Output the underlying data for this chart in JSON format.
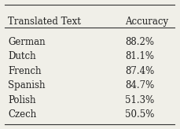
{
  "col_headers": [
    "Translated Text",
    "Accuracy"
  ],
  "rows": [
    [
      "German",
      "88.2%"
    ],
    [
      "Dutch",
      "81.1%"
    ],
    [
      "French",
      "87.4%"
    ],
    [
      "Spanish",
      "84.7%"
    ],
    [
      "Polish",
      "51.3%"
    ],
    [
      "Czech",
      "50.5%"
    ]
  ],
  "background_color": "#f0efe8",
  "header_line_color": "#333333",
  "text_color": "#222222",
  "font_size": 8.5,
  "header_font_size": 8.5
}
